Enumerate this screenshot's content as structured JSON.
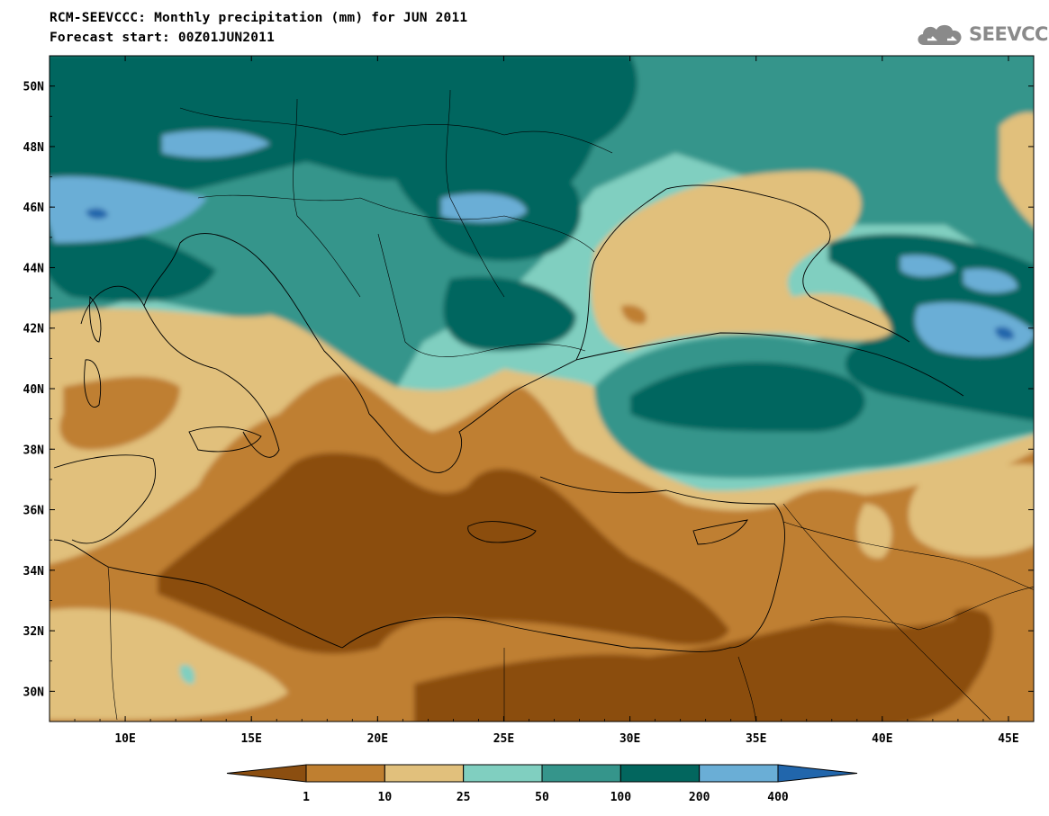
{
  "header": {
    "title": "RCM-SEEVCCC: Monthly precipitation (mm) for JUN 2011",
    "subtitle": "Forecast start: 00Z01JUN2011"
  },
  "logo": {
    "text": "SEEVCCC",
    "icon": "cloud-icon"
  },
  "map": {
    "lat_labels": [
      "50N",
      "48N",
      "46N",
      "44N",
      "42N",
      "40N",
      "38N",
      "36N",
      "34N",
      "32N",
      "30N"
    ],
    "lon_labels": [
      "10E",
      "15E",
      "20E",
      "25E",
      "30E",
      "35E",
      "40E",
      "45E"
    ],
    "lat_range": [
      29,
      51
    ],
    "lon_range": [
      7,
      46
    ]
  },
  "colorbar": {
    "levels": [
      "1",
      "10",
      "25",
      "50",
      "100",
      "200",
      "400"
    ],
    "colors": [
      "#8b4e10",
      "#bf7f30",
      "#e1c07c",
      "#80cfc0",
      "#35958b",
      "#02665e",
      "#6aaed6",
      "#2166ac"
    ]
  },
  "palette": {
    "lt1": "#8b4e10",
    "c1_10": "#bf7f30",
    "c10_25": "#e1c07c",
    "c25_50": "#80cfc0",
    "c50_100": "#35958b",
    "c100_200": "#02665e",
    "c200_400": "#6aaed6",
    "gt400": "#2166ac"
  }
}
